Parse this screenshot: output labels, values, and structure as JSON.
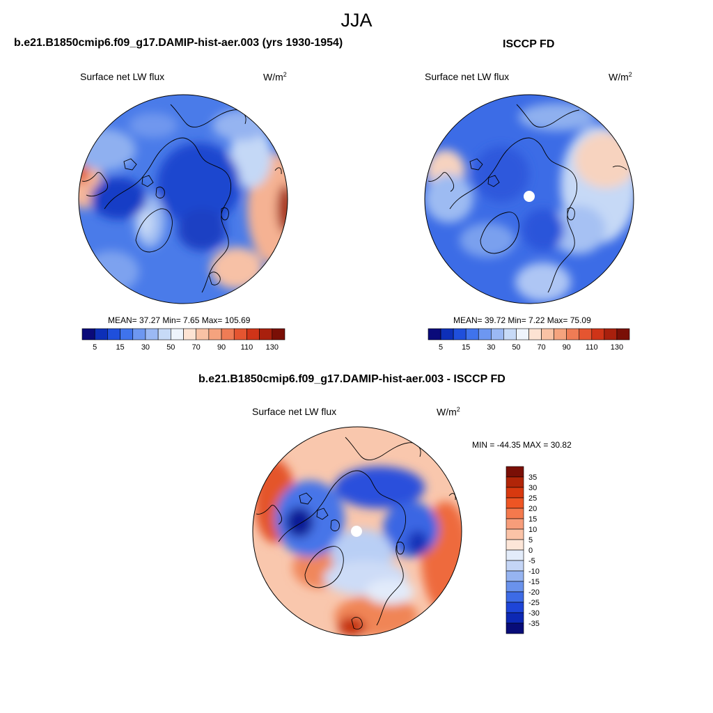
{
  "figure": {
    "title": "JJA"
  },
  "panels": [
    {
      "id": "model",
      "title": "b.e21.B1850cmip6.f09_g17.DAMIP-hist-aer.003 (yrs 1930-1954)",
      "left_label": "Surface net LW flux",
      "units_base": "W/m",
      "units_sup": "2",
      "stats": "MEAN=  37.27  Min=   7.65  Max= 105.69"
    },
    {
      "id": "obs",
      "title": "ISCCP FD",
      "left_label": "Surface net LW flux",
      "units_base": "W/m",
      "units_sup": "2",
      "stats": "MEAN=  39.72  Min=   7.22  Max=  75.09"
    },
    {
      "id": "diff",
      "title": "b.e21.B1850cmip6.f09_g17.DAMIP-hist-aer.003 - ISCCP FD",
      "left_label": "Surface net LW flux",
      "units_base": "W/m",
      "units_sup": "2",
      "stats": "MIN = -44.35 MAX =  30.82"
    }
  ],
  "colorbars": {
    "absolute": {
      "tick_labels": [
        "5",
        "15",
        "30",
        "50",
        "70",
        "90",
        "110",
        "130"
      ],
      "colors": [
        "#0a0a7a",
        "#0d2fb8",
        "#1f4fdc",
        "#3f73ec",
        "#6d97f1",
        "#9bb9f4",
        "#c7daf7",
        "#eef4fc",
        "#fde3d3",
        "#f9c2a5",
        "#f5a37e",
        "#ef7c55",
        "#e55530",
        "#cf3418",
        "#a9200d",
        "#7a0f06"
      ]
    },
    "difference": {
      "tick_labels": [
        "35",
        "30",
        "25",
        "20",
        "15",
        "10",
        "5",
        "0",
        "-5",
        "-10",
        "-15",
        "-20",
        "-25",
        "-30",
        "-35"
      ],
      "colors": [
        "#7a0f06",
        "#b12508",
        "#d8390f",
        "#ee5524",
        "#f4794d",
        "#f79d7a",
        "#fbc3a7",
        "#fde6d8",
        "#e3ecfa",
        "#c4d5f6",
        "#96b4f1",
        "#6a92ec",
        "#3d6be6",
        "#1e45d8",
        "#0d28b4",
        "#080c78"
      ]
    }
  }
}
